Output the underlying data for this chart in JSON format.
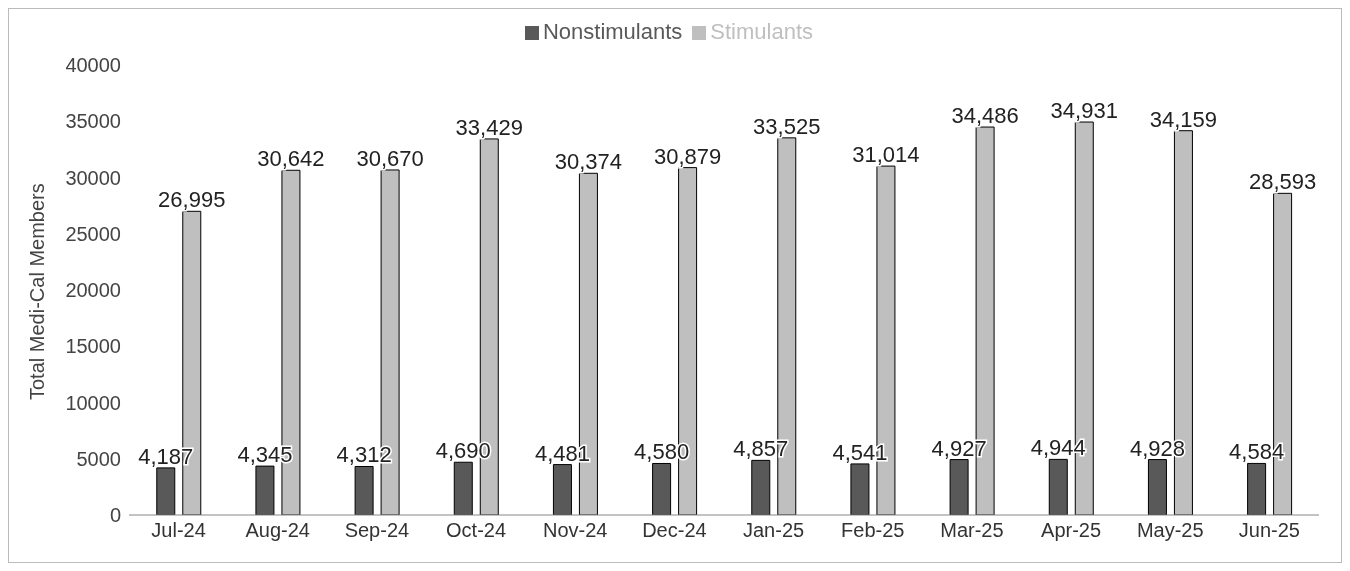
{
  "chart_data": {
    "type": "bar",
    "ylabel": "Total Medi-Cal Members",
    "categories": [
      "Jul-24",
      "Aug-24",
      "Sep-24",
      "Oct-24",
      "Nov-24",
      "Dec-24",
      "Jan-25",
      "Feb-25",
      "Mar-25",
      "Apr-25",
      "May-25",
      "Jun-25"
    ],
    "series": [
      {
        "name": "Nonstimulants",
        "color": "#595959",
        "values": [
          4187,
          4345,
          4312,
          4690,
          4481,
          4580,
          4857,
          4541,
          4927,
          4944,
          4928,
          4584
        ],
        "value_labels": [
          "4,187",
          "4,345",
          "4,312",
          "4,690",
          "4,481",
          "4,580",
          "4,857",
          "4,541",
          "4,927",
          "4,944",
          "4,928",
          "4,584"
        ]
      },
      {
        "name": "Stimulants",
        "color": "#bfbfbf",
        "values": [
          26995,
          30642,
          30670,
          33429,
          30374,
          30879,
          33525,
          31014,
          34486,
          34931,
          34159,
          28593
        ],
        "value_labels": [
          "26,995",
          "30,642",
          "30,670",
          "33,429",
          "30,374",
          "30,879",
          "33,525",
          "31,014",
          "34,486",
          "34,931",
          "34,159",
          "28,593"
        ]
      }
    ],
    "ylim": [
      0,
      40000
    ],
    "yticks": [
      0,
      5000,
      10000,
      15000,
      20000,
      25000,
      30000,
      35000,
      40000
    ],
    "grid": false,
    "legend": "top"
  }
}
